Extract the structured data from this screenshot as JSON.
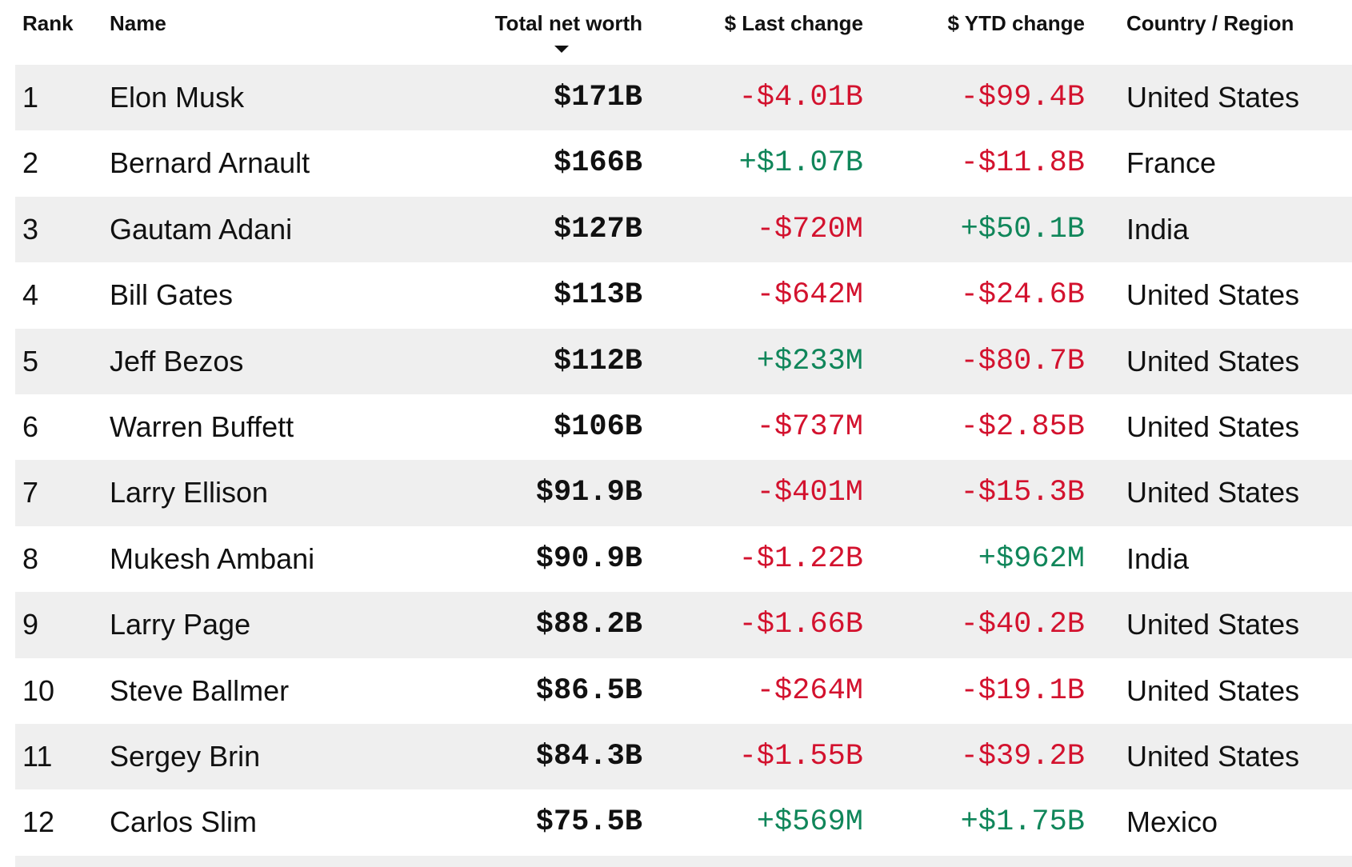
{
  "table": {
    "header": [
      "Rank",
      "Name",
      "Total net worth",
      "$ Last change",
      "$ YTD change",
      "Country / Region"
    ],
    "rows": [
      [
        "1",
        "Elon Musk",
        "$171B",
        "-$4.01B",
        "-$99.4B",
        "United States"
      ],
      [
        "2",
        "Bernard Arnault",
        "$166B",
        "+$1.07B",
        "-$11.8B",
        "France"
      ],
      [
        "3",
        "Gautam Adani",
        "$127B",
        "-$720M",
        "+$50.1B",
        "India"
      ],
      [
        "4",
        "Bill Gates",
        "$113B",
        "-$642M",
        "-$24.6B",
        "United States"
      ],
      [
        "5",
        "Jeff Bezos",
        "$112B",
        "+$233M",
        "-$80.7B",
        "United States"
      ],
      [
        "6",
        "Warren Buffett",
        "$106B",
        "-$737M",
        "-$2.85B",
        "United States"
      ],
      [
        "7",
        "Larry Ellison",
        "$91.9B",
        "-$401M",
        "-$15.3B",
        "United States"
      ],
      [
        "8",
        "Mukesh Ambani",
        "$90.9B",
        "-$1.22B",
        "+$962M",
        "India"
      ],
      [
        "9",
        "Larry Page",
        "$88.2B",
        "-$1.66B",
        "-$40.2B",
        "United States"
      ],
      [
        "10",
        "Steve Ballmer",
        "$86.5B",
        "-$264M",
        "-$19.1B",
        "United States"
      ],
      [
        "11",
        "Sergey Brin",
        "$84.3B",
        "-$1.55B",
        "-$39.2B",
        "United States"
      ],
      [
        "12",
        "Carlos Slim",
        "$75.5B",
        "+$569M",
        "+$1.75B",
        "Mexico"
      ]
    ],
    "colors": {
      "positive": "#10865a",
      "negative": "#d3122e"
    }
  }
}
